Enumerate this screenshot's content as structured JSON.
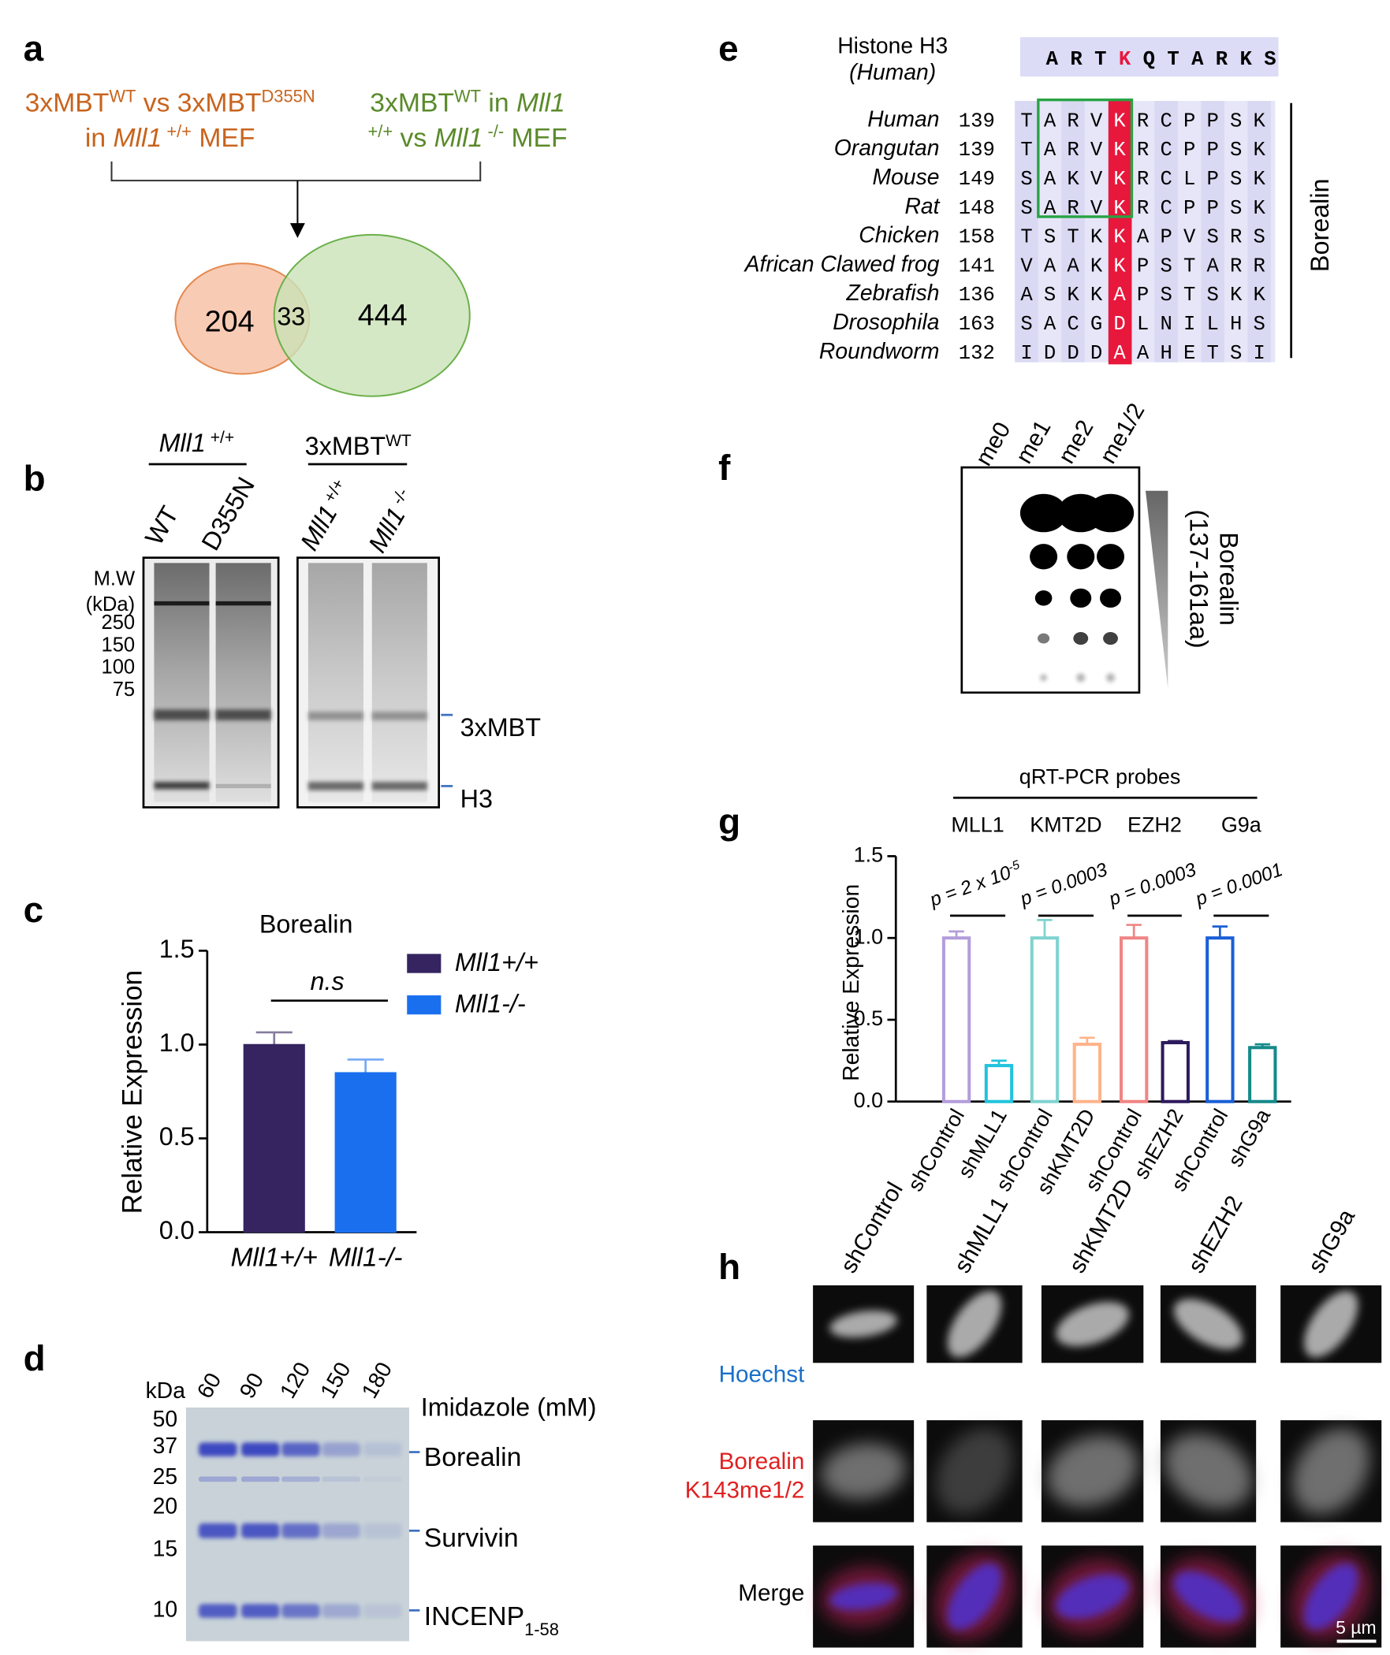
{
  "panel_labels": [
    "a",
    "b",
    "c",
    "d",
    "e",
    "f",
    "g",
    "h"
  ],
  "panel_a": {
    "left_lines": [
      [
        "3xMBT",
        "WT",
        " vs 3xMBT",
        "D355N"
      ],
      [
        "in ",
        "Mll1",
        " +/+",
        " MEF"
      ]
    ],
    "right_lines": [
      [
        "3xMBT",
        "WT",
        " in ",
        "Mll1"
      ],
      [
        "+/+",
        " vs ",
        "Mll1",
        " -/-",
        " MEF"
      ]
    ],
    "venn": [
      204,
      33,
      444
    ]
  },
  "panel_b": {
    "left_header": [
      "Mll1",
      " +/+"
    ],
    "right_header": [
      "3xMBT",
      "WT"
    ],
    "lanes": [
      [
        "WT"
      ],
      [
        "D355N"
      ],
      [
        "Mll1",
        " +/+"
      ],
      [
        "Mll1",
        " -/-"
      ]
    ],
    "mw_title": [
      "M.W",
      "(kDa)"
    ],
    "mw_markers": [
      250,
      150,
      100,
      75
    ],
    "bands": [
      "3xMBT",
      "H3"
    ]
  },
  "chart_data": [
    {
      "type": "bar",
      "title": "Borealin",
      "y_label": "Relative Expression",
      "categories": [
        "Mll1+/+",
        "Mll1-/-"
      ],
      "values": [
        1.0,
        0.85
      ],
      "errors": [
        0.065,
        0.07
      ],
      "colors": [
        "#35245f",
        "#1a6fef"
      ],
      "ylim": [
        0,
        1.5
      ],
      "yticks": [
        {
          "value": 0,
          "label": "0.0"
        },
        0.5,
        {
          "value": 1,
          "label": "1.0"
        },
        1.5
      ],
      "annotation": "n.s",
      "legend": true
    },
    {
      "type": "bar",
      "hollow": true,
      "y_label": "Relative Expression",
      "header": "qRT-PCR probes",
      "groups": [
        "MLL1",
        "KMT2D",
        "EZH2",
        "G9a"
      ],
      "p_values": [
        [
          "p = 2 x 10",
          "-5"
        ],
        [
          "p = 0.0003"
        ],
        [
          "p = 0.0003"
        ],
        [
          "p = 0.0001"
        ]
      ],
      "categories": [
        "shControl",
        "shMLL1",
        "shControl",
        "shKMT2D",
        "shControl",
        "shEZH2",
        "shControl",
        "shG9a"
      ],
      "values": [
        1.0,
        0.22,
        1.0,
        0.35,
        1.0,
        0.36,
        1.0,
        0.33
      ],
      "errors": [
        0.04,
        0.03,
        0.11,
        0.04,
        0.08,
        0.01,
        0.07,
        0.02
      ],
      "colors": [
        "#b39ddb",
        "#22c3dd",
        "#7fd3cf",
        "#ffb38a",
        "#f08585",
        "#2e1a5e",
        "#1a5fd6",
        "#168a8a"
      ],
      "ylim": [
        0,
        1.5
      ],
      "yticks": [
        {
          "value": 0,
          "label": "0.0"
        },
        0.5,
        {
          "value": 1,
          "label": "1.0"
        },
        1.5
      ]
    }
  ],
  "panel_d": {
    "kda": "kDa",
    "markers": [
      50,
      37,
      25,
      20,
      15,
      10
    ],
    "lanes": [
      60,
      90,
      120,
      150,
      180
    ],
    "lane_title": "Imidazole (mM)",
    "bands": [
      [
        "Borealin"
      ],
      [
        "Survivin"
      ],
      [
        "INCENP",
        "1-58"
      ]
    ]
  },
  "panel_e": {
    "h3_label": [
      "Histone H3",
      "(Human)"
    ],
    "h3_sequence": [
      "A",
      "R",
      "T",
      "K",
      "Q",
      "T",
      "A",
      "R",
      "K",
      "S"
    ],
    "rows": [
      {
        "species": "Human",
        "start": 139,
        "residues": [
          "T",
          "A",
          "R",
          "V",
          "K",
          "R",
          "C",
          "P",
          "P",
          "S",
          "K"
        ]
      },
      {
        "species": "Orangutan",
        "start": 139,
        "residues": [
          "T",
          "A",
          "R",
          "V",
          "K",
          "R",
          "C",
          "P",
          "P",
          "S",
          "K"
        ]
      },
      {
        "species": "Mouse",
        "start": 149,
        "residues": [
          "S",
          "A",
          "K",
          "V",
          "K",
          "R",
          "C",
          "L",
          "P",
          "S",
          "K"
        ]
      },
      {
        "species": "Rat",
        "start": 148,
        "residues": [
          "S",
          "A",
          "R",
          "V",
          "K",
          "R",
          "C",
          "P",
          "P",
          "S",
          "K"
        ]
      },
      {
        "species": "Chicken",
        "start": 158,
        "residues": [
          "T",
          "S",
          "T",
          "K",
          "K",
          "A",
          "P",
          "V",
          "S",
          "R",
          "S"
        ]
      },
      {
        "species": "African Clawed frog",
        "start": 141,
        "residues": [
          "V",
          "A",
          "A",
          "K",
          "K",
          "P",
          "S",
          "T",
          "A",
          "R",
          "R"
        ]
      },
      {
        "species": "Zebrafish",
        "start": 136,
        "residues": [
          "A",
          "S",
          "K",
          "K",
          "A",
          "P",
          "S",
          "T",
          "S",
          "K",
          "K"
        ]
      },
      {
        "species": "Drosophila",
        "start": 163,
        "residues": [
          "S",
          "A",
          "C",
          "G",
          "D",
          "L",
          "N",
          "I",
          "L",
          "H",
          "S"
        ]
      },
      {
        "species": "Roundworm",
        "start": 132,
        "residues": [
          "I",
          "D",
          "D",
          "D",
          "A",
          "A",
          "H",
          "E",
          "T",
          "S",
          "I"
        ]
      }
    ],
    "label": "Borealin"
  },
  "panel_f": {
    "lanes": [
      "me0",
      "me1",
      "me2",
      "me1/2"
    ],
    "label": [
      "Borealin",
      "(137-161aa)"
    ]
  },
  "panel_h": {
    "columns": [
      "shControl",
      "shMLL1",
      "shKMT2D",
      "shEZH2",
      "shG9a"
    ],
    "rows": [
      [
        "Hoechst"
      ],
      [
        "Borealin",
        "K143me1/2"
      ],
      [
        "Merge"
      ]
    ],
    "scale_bar": "5 µm"
  }
}
